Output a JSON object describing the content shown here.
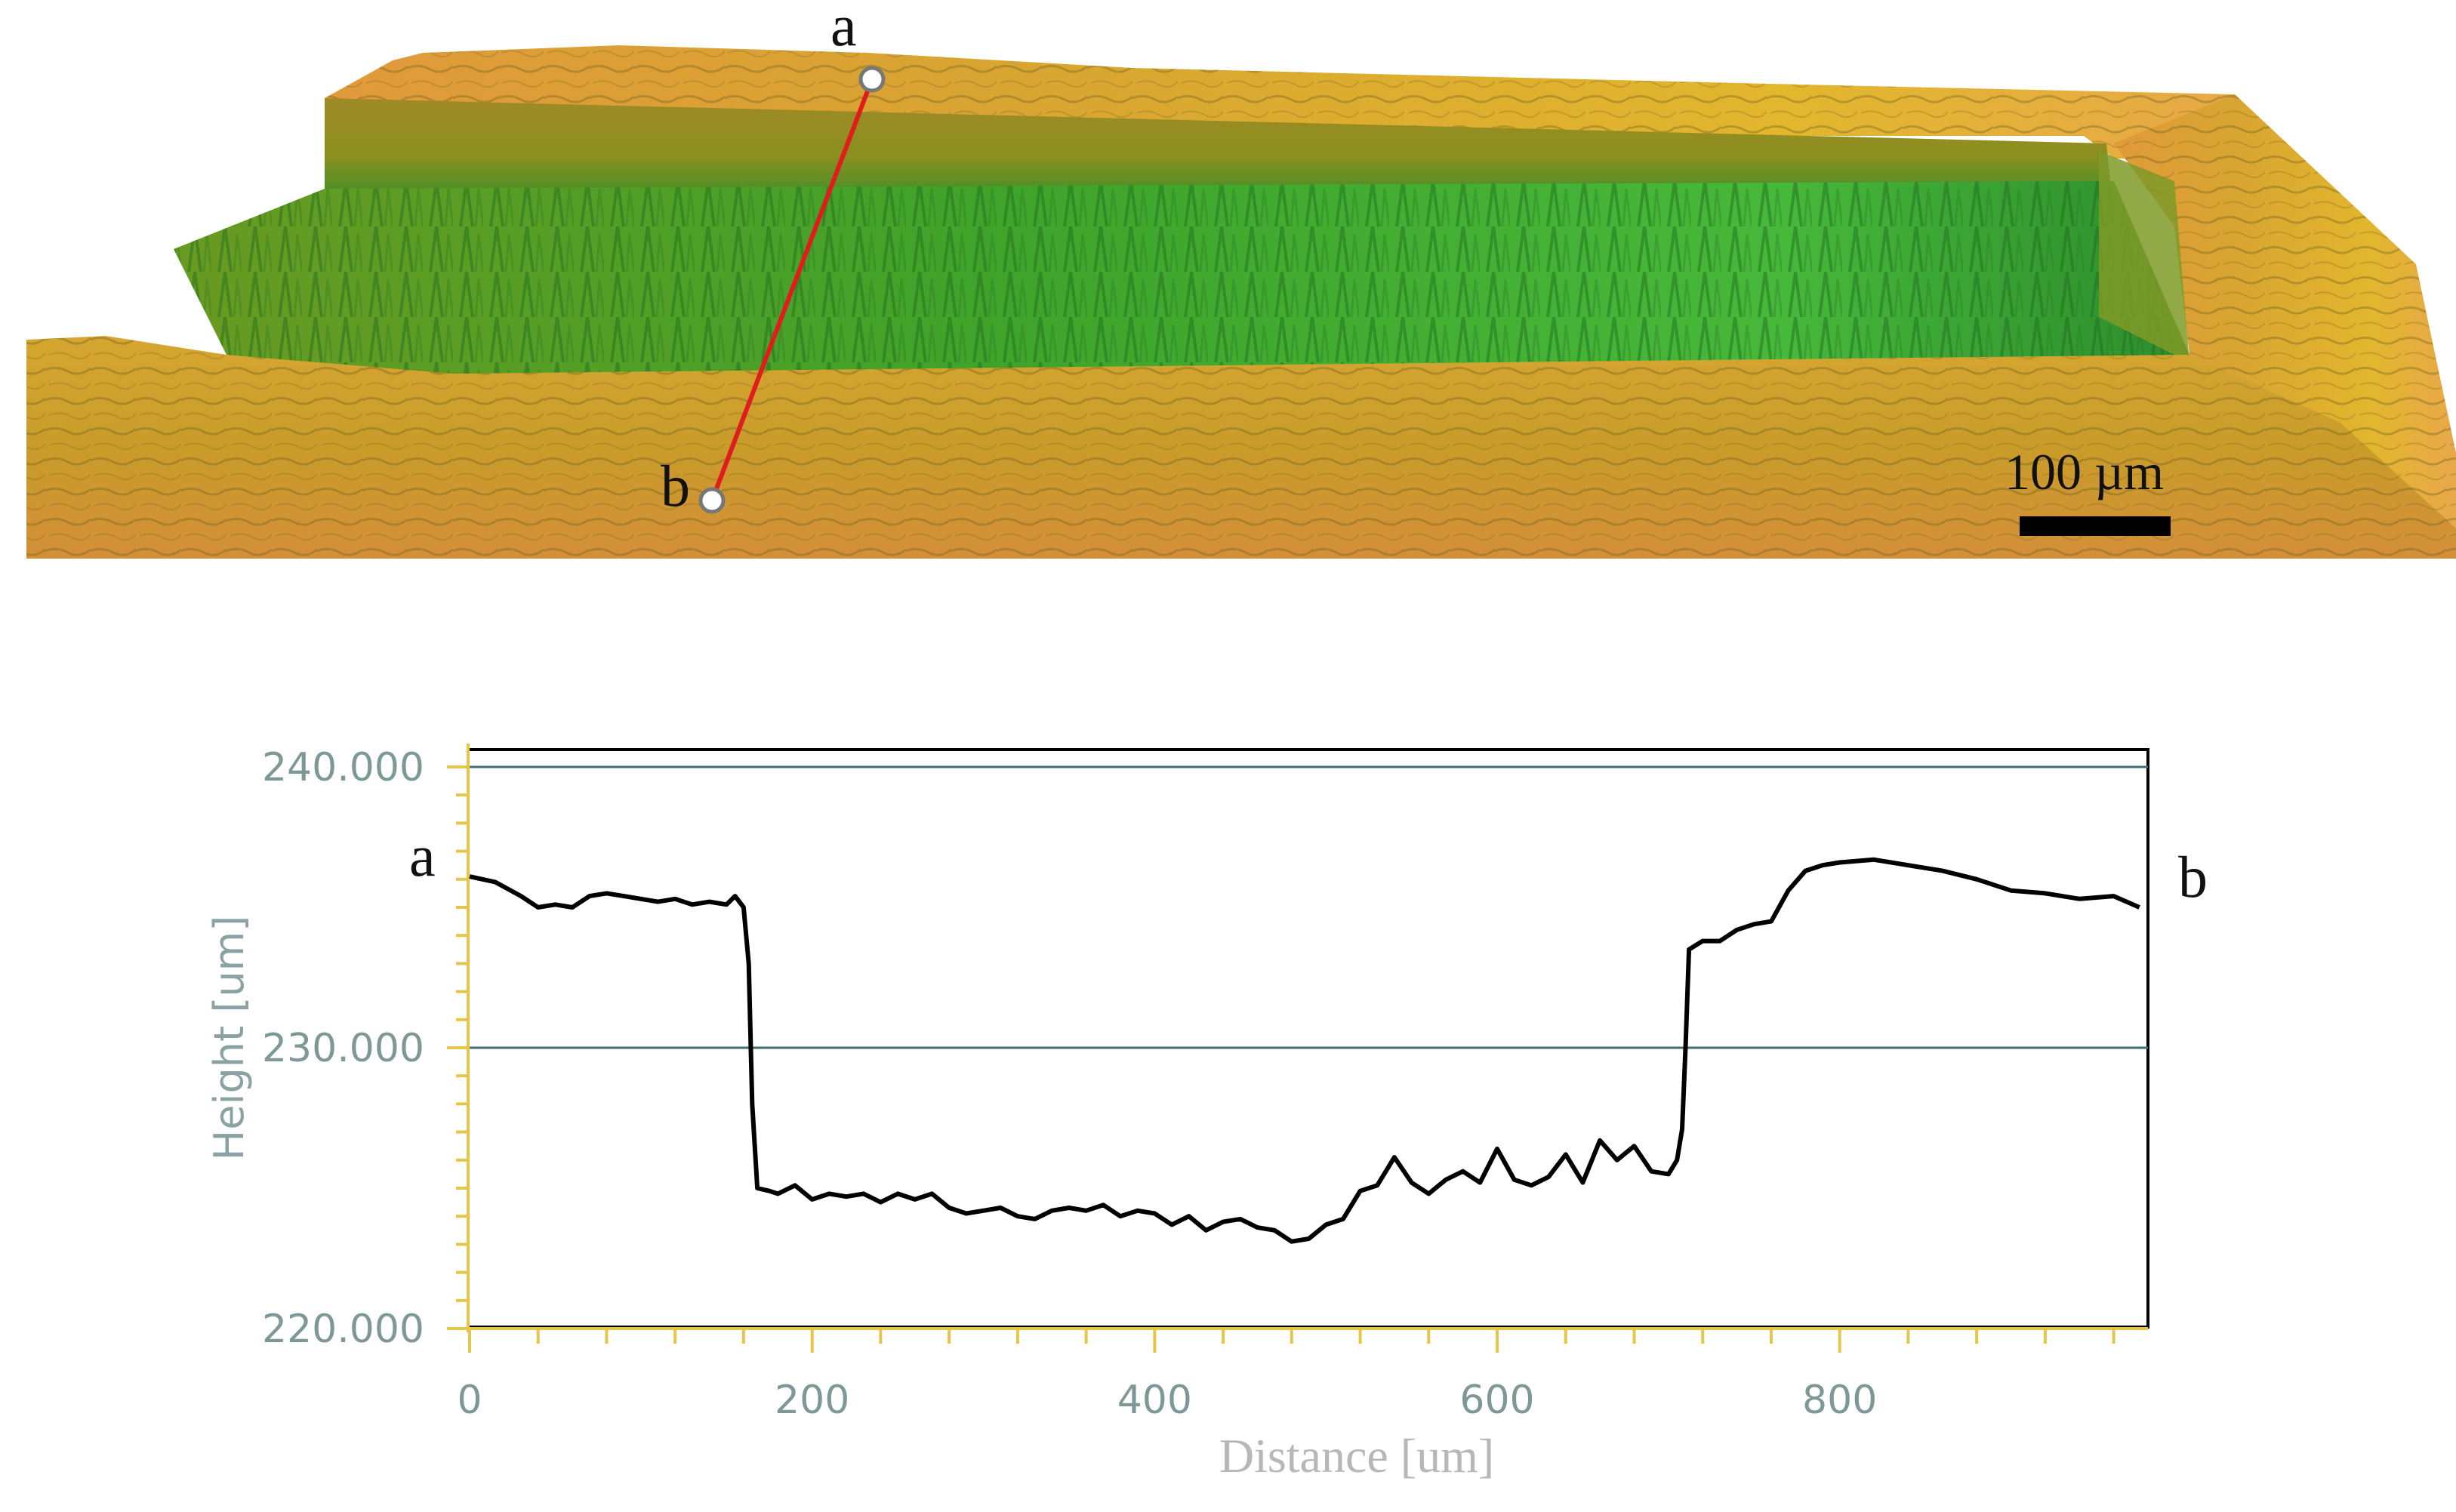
{
  "surface": {
    "marker_a": "a",
    "marker_b": "b",
    "scale_bar_label": "100 µm",
    "colors": {
      "high": "#d9a52e",
      "wall": "#8c8c1e",
      "low": "#2f9a2a",
      "line": "#e01c1c"
    }
  },
  "profile": {
    "left_marker": "a",
    "right_marker": "b"
  },
  "chart_data": {
    "type": "line",
    "xlabel": "Distance [um]",
    "ylabel": "Height [um]",
    "xlim": [
      0,
      980
    ],
    "ylim": [
      220,
      240
    ],
    "x_ticks": [
      "0",
      "200",
      "400",
      "600",
      "800"
    ],
    "y_ticks": [
      "220.000",
      "230.000",
      "240.000"
    ],
    "grid": "horizontal lines at 230 and 240",
    "series": [
      {
        "color": "#000000",
        "x": [
          0,
          15,
          30,
          40,
          50,
          60,
          70,
          80,
          90,
          100,
          110,
          120,
          130,
          140,
          150,
          155,
          160,
          163,
          165,
          168,
          175,
          180,
          190,
          200,
          210,
          220,
          230,
          240,
          250,
          260,
          270,
          280,
          290,
          300,
          310,
          320,
          330,
          340,
          350,
          360,
          370,
          380,
          390,
          400,
          410,
          420,
          430,
          440,
          450,
          460,
          470,
          480,
          490,
          500,
          510,
          520,
          530,
          540,
          550,
          560,
          570,
          580,
          590,
          600,
          610,
          620,
          630,
          640,
          650,
          660,
          670,
          680,
          690,
          700,
          705,
          708,
          710,
          712,
          720,
          730,
          740,
          750,
          760,
          770,
          780,
          790,
          800,
          820,
          840,
          860,
          880,
          900,
          920,
          940,
          960,
          975
        ],
        "y": [
          236.1,
          235.9,
          235.4,
          235.0,
          235.1,
          235.0,
          235.4,
          235.5,
          235.4,
          235.3,
          235.2,
          235.3,
          235.1,
          235.2,
          235.1,
          235.4,
          235.0,
          233.0,
          228.0,
          225.0,
          224.9,
          224.8,
          225.1,
          224.6,
          224.8,
          224.7,
          224.8,
          224.5,
          224.8,
          224.6,
          224.8,
          224.3,
          224.1,
          224.2,
          224.3,
          224.0,
          223.9,
          224.2,
          224.3,
          224.2,
          224.4,
          224.0,
          224.2,
          224.1,
          223.7,
          224.0,
          223.5,
          223.8,
          223.9,
          223.6,
          223.5,
          223.1,
          223.2,
          223.7,
          223.9,
          224.9,
          225.1,
          226.1,
          225.2,
          224.8,
          225.3,
          225.6,
          225.2,
          226.4,
          225.3,
          225.1,
          225.4,
          226.2,
          225.2,
          226.7,
          226.0,
          226.5,
          225.6,
          225.5,
          226.0,
          227.1,
          230.0,
          233.5,
          233.8,
          233.8,
          234.2,
          234.4,
          234.5,
          235.6,
          236.3,
          236.5,
          236.6,
          236.7,
          236.5,
          236.3,
          236.0,
          235.6,
          235.5,
          235.3,
          235.4,
          235.0
        ]
      }
    ]
  }
}
